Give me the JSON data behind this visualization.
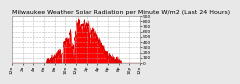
{
  "title": "Milwaukee Weather Solar Radiation per Minute W/m2 (Last 24 Hours)",
  "background_color": "#e8e8e8",
  "plot_bg_color": "#ffffff",
  "fill_color": "#ff0000",
  "line_color": "#dd0000",
  "grid_color": "#aaaaaa",
  "ylim": [
    0,
    900
  ],
  "yticks": [
    0,
    100,
    200,
    300,
    400,
    500,
    600,
    700,
    800,
    900
  ],
  "num_points": 1440,
  "peak_hour": 13.2,
  "peak_value": 830,
  "sigma": 2.6,
  "title_fontsize": 4.5,
  "tick_fontsize": 3.2
}
